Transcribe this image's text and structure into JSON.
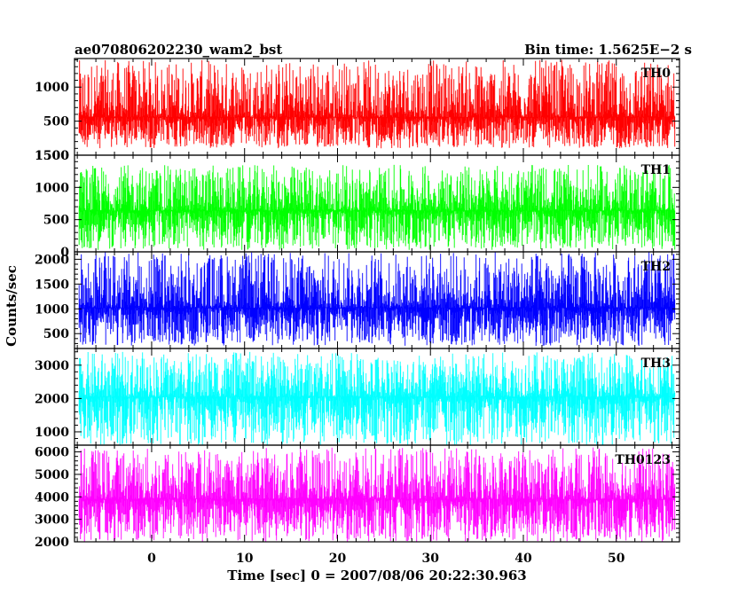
{
  "header": {
    "title": "ae070806202230_wam2_bst",
    "bin_time": "Bin time: 1.5625E−2 s"
  },
  "axes": {
    "xlabel": "Time [sec] 0 = 2007/08/06 20:22:30.963",
    "ylabel": "Counts/sec"
  },
  "chart_data": {
    "type": "line",
    "title": "ae070806202230_wam2_bst",
    "subtitle": "Bin time: 1.5625E−2 s",
    "xlabel": "Time [sec] 0 = 2007/08/06 20:22:30.963",
    "ylabel": "Counts/sec",
    "xlim": [
      -8.3,
      56.8
    ],
    "data_x_range": [
      -7.8,
      56.3
    ],
    "bin_time_s": 0.015625,
    "x_ticks": [
      0,
      10,
      20,
      30,
      40,
      50
    ],
    "panels": [
      {
        "name": "TH0",
        "color": "#ff0000",
        "ylim": [
          0,
          1420
        ],
        "yticks": [
          500,
          1000
        ],
        "ytick_labels": [
          "500",
          "1000"
        ],
        "top_tick_label": "1500",
        "envelope": {
          "mean": 560,
          "low": 100,
          "high": 1400
        }
      },
      {
        "name": "TH1",
        "color": "#00ff00",
        "ylim": [
          0,
          1500
        ],
        "yticks": [
          0,
          500,
          1000,
          1500
        ],
        "ytick_labels": [
          "0",
          "500",
          "1000",
          "1500"
        ],
        "envelope": {
          "mean": 640,
          "low": 30,
          "high": 1350
        }
      },
      {
        "name": "TH2",
        "color": "#0000ff",
        "ylim": [
          200,
          2150
        ],
        "yticks": [
          500,
          1000,
          1500,
          2000
        ],
        "ytick_labels": [
          "500",
          "1000",
          "1500",
          "2000"
        ],
        "envelope": {
          "mean": 1020,
          "low": 250,
          "high": 2150
        }
      },
      {
        "name": "TH3",
        "color": "#00ffff",
        "ylim": [
          600,
          3500
        ],
        "yticks": [
          1000,
          2000,
          3000
        ],
        "ytick_labels": [
          "1000",
          "2000",
          "3000"
        ],
        "envelope": {
          "mean": 2050,
          "low": 600,
          "high": 3400
        }
      },
      {
        "name": "TH0123",
        "color": "#ff00ff",
        "ylim": [
          2000,
          6300
        ],
        "yticks": [
          2000,
          3000,
          4000,
          5000,
          6000
        ],
        "ytick_labels": [
          "2000",
          "3000",
          "4000",
          "5000",
          "6000"
        ],
        "envelope": {
          "mean": 3900,
          "low": 2000,
          "high": 6200
        }
      }
    ]
  }
}
